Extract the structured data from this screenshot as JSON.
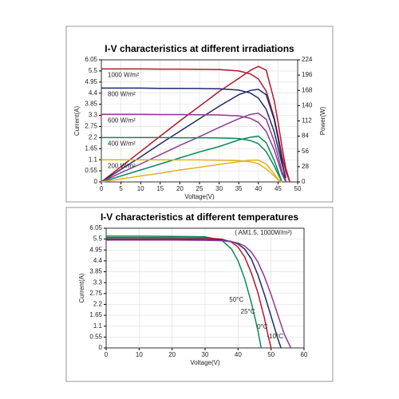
{
  "chart_data": [
    {
      "type": "line",
      "title": "I-V characteristics at different irradiations",
      "xlabel": "Voltage(V)",
      "ylabel": "Current(A)",
      "y2label": "Power(W)",
      "x": [
        0,
        5,
        10,
        15,
        20,
        25,
        30,
        35,
        38,
        40,
        42,
        44,
        45,
        46,
        47,
        48
      ],
      "xlim": [
        0,
        50
      ],
      "xticks": [
        0,
        5,
        10,
        15,
        20,
        25,
        30,
        35,
        40,
        45,
        50
      ],
      "ylim": [
        0,
        6.05
      ],
      "yticks": [
        0,
        0.55,
        1.1,
        1.65,
        2.2,
        2.75,
        3.3,
        3.85,
        4.4,
        4.95,
        5.5,
        6.05
      ],
      "y2lim": [
        0,
        224
      ],
      "y2ticks": [
        0,
        28,
        56,
        84,
        112,
        140,
        168,
        196,
        224
      ],
      "grid": true,
      "series": [
        {
          "name": "1000 W/m²",
          "color": "#b3192c",
          "values": [
            5.6,
            5.6,
            5.6,
            5.59,
            5.59,
            5.58,
            5.57,
            5.5,
            5.35,
            5.1,
            4.5,
            3.2,
            2.3,
            1.3,
            0.5,
            0
          ]
        },
        {
          "color": "#b3192c",
          "axis": "y2",
          "values": [
            0,
            28,
            56,
            84,
            112,
            139,
            166,
            190,
            205,
            212,
            205,
            150,
            110,
            65,
            25,
            0
          ]
        },
        {
          "name": "800 W/m²",
          "color": "#1f2a6b",
          "values": [
            4.65,
            4.65,
            4.65,
            4.64,
            4.64,
            4.63,
            4.62,
            4.55,
            4.4,
            4.15,
            3.6,
            2.5,
            1.7,
            0.9,
            0.2,
            null
          ]
        },
        {
          "color": "#1f2a6b",
          "axis": "y2",
          "values": [
            0,
            23,
            46,
            70,
            93,
            116,
            139,
            160,
            168,
            170,
            160,
            115,
            80,
            40,
            0,
            null
          ]
        },
        {
          "name": "600 W/m²",
          "color": "#8e3a92",
          "values": [
            3.35,
            3.35,
            3.35,
            3.34,
            3.34,
            3.33,
            3.32,
            3.27,
            3.15,
            2.95,
            2.5,
            1.6,
            1.0,
            0.4,
            0,
            null
          ]
        },
        {
          "color": "#8e3a92",
          "axis": "y2",
          "values": [
            0,
            17,
            33,
            50,
            67,
            83,
            100,
            116,
            124,
            126,
            115,
            75,
            48,
            20,
            0,
            null
          ]
        },
        {
          "name": "400 W/m²",
          "color": "#0a8a5a",
          "values": [
            2.2,
            2.2,
            2.2,
            2.2,
            2.19,
            2.19,
            2.18,
            2.15,
            2.05,
            1.9,
            1.5,
            0.8,
            0.4,
            0,
            null,
            null
          ]
        },
        {
          "color": "#0a8a5a",
          "axis": "y2",
          "values": [
            0,
            11,
            22,
            33,
            44,
            55,
            65,
            77,
            82,
            84,
            72,
            40,
            20,
            0,
            null,
            null
          ]
        },
        {
          "name": "200 W/m²",
          "color": "#e2b21f",
          "values": [
            1.1,
            1.1,
            1.1,
            1.1,
            1.09,
            1.09,
            1.08,
            1.05,
            1.0,
            0.9,
            0.65,
            0.3,
            0.1,
            0,
            null,
            null
          ]
        },
        {
          "color": "#e2b21f",
          "axis": "y2",
          "values": [
            0,
            5.5,
            11,
            16,
            22,
            27,
            32,
            37,
            40,
            40,
            33,
            15,
            5,
            0,
            null,
            null
          ]
        }
      ]
    },
    {
      "type": "line",
      "title": "I-V characteristics at different temperatures",
      "subtitle": "( AM1.5, 1000W/m²)",
      "xlabel": "Voltage(V)",
      "ylabel": "Current(A)",
      "xlim": [
        0,
        60
      ],
      "xticks": [
        0,
        10,
        20,
        30,
        40,
        50,
        60
      ],
      "ylim": [
        0,
        6.05
      ],
      "yticks": [
        0,
        0.55,
        1.1,
        1.65,
        2.2,
        2.75,
        3.3,
        3.85,
        4.4,
        4.95,
        5.5,
        6.05
      ],
      "grid": true,
      "series": [
        {
          "name": "50°C",
          "color": "#0a8a5a",
          "x": [
            0,
            10,
            20,
            30,
            35,
            38,
            40,
            42,
            44,
            46,
            47
          ],
          "values": [
            5.65,
            5.65,
            5.64,
            5.62,
            5.45,
            5.0,
            4.4,
            3.5,
            2.3,
            0.9,
            0
          ]
        },
        {
          "name": "25°C",
          "color": "#b3192c",
          "x": [
            0,
            10,
            20,
            30,
            35,
            38,
            40,
            42,
            44,
            46,
            48,
            49,
            50
          ],
          "values": [
            5.58,
            5.58,
            5.57,
            5.56,
            5.5,
            5.35,
            5.1,
            4.6,
            3.8,
            2.8,
            1.5,
            0.7,
            0
          ]
        },
        {
          "name": "0°C",
          "color": "#1f2a6b",
          "x": [
            0,
            10,
            20,
            30,
            35,
            38,
            40,
            42,
            44,
            46,
            48,
            50,
            52,
            53
          ],
          "values": [
            5.5,
            5.5,
            5.5,
            5.49,
            5.45,
            5.38,
            5.25,
            5.0,
            4.5,
            3.7,
            2.7,
            1.6,
            0.5,
            0
          ]
        },
        {
          "name": "-10°C",
          "color": "#8e3a92",
          "x": [
            0,
            10,
            20,
            30,
            35,
            38,
            40,
            42,
            44,
            46,
            48,
            50,
            52,
            54,
            56
          ],
          "values": [
            5.45,
            5.45,
            5.45,
            5.44,
            5.42,
            5.37,
            5.3,
            5.15,
            4.85,
            4.35,
            3.6,
            2.7,
            1.7,
            0.7,
            0
          ]
        }
      ]
    }
  ]
}
